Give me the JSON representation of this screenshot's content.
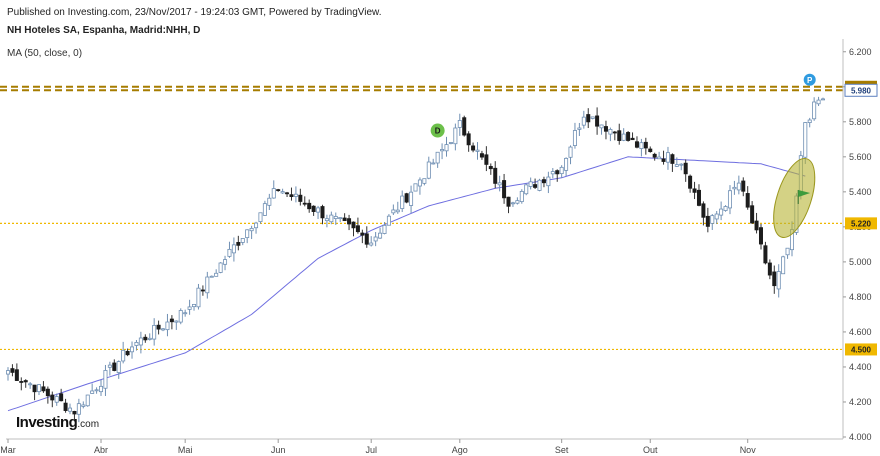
{
  "header": {
    "published": "Published on Investing.com, 23/Nov/2017 - 19:24:03 GMT, Powered by TradingView.",
    "symbol": "NH Hoteles SA, Espanha, Madrid:NHH, D",
    "indicator": "MA (50, close, 0)"
  },
  "brand": {
    "main": "Investing",
    "suffix": ".com"
  },
  "colors": {
    "up_fill": "#ffffff",
    "up_stroke": "#6f8fb3",
    "down_fill": "#1c1c1c",
    "ma_line": "#6e6ee0",
    "hline_dash": "#a67c00",
    "hline_dot": "#f0b800",
    "highlight": "#b8b434",
    "flag": "#3d9b3d",
    "badge_blue": "#2f9be0",
    "badge_green": "#6cc04a"
  },
  "chart_data": {
    "type": "candlestick",
    "title": "NH Hoteles SA, Espanha, Madrid:NHH, D",
    "ylim": [
      4.0,
      6.25
    ],
    "y_ticks": [
      4.0,
      4.2,
      4.4,
      4.6,
      4.8,
      5.0,
      5.2,
      5.4,
      5.6,
      5.8,
      6.0,
      6.2
    ],
    "y_tick_labels": [
      "4.000",
      "4.200",
      "4.400",
      "4.600",
      "4.800",
      "5.000",
      "5.200",
      "5.400",
      "5.600",
      "5.800",
      "6.000",
      "6.200"
    ],
    "x_labels": [
      {
        "label": "Mar",
        "bar": 0
      },
      {
        "label": "Abr",
        "bar": 21
      },
      {
        "label": "Mai",
        "bar": 40
      },
      {
        "label": "Jun",
        "bar": 61
      },
      {
        "label": "Jul",
        "bar": 82
      },
      {
        "label": "Ago",
        "bar": 102
      },
      {
        "label": "Set",
        "bar": 125
      },
      {
        "label": "Out",
        "bar": 145
      },
      {
        "label": "Nov",
        "bar": 167
      }
    ],
    "price_levels": [
      {
        "value": 6.0,
        "label": "6.000",
        "style": "dashed"
      },
      {
        "value": 5.98,
        "label": "5.980",
        "style": "dashed"
      },
      {
        "value": 5.22,
        "label": "5.220",
        "style": "dotted"
      },
      {
        "value": 4.5,
        "label": "4.500",
        "style": "dotted"
      }
    ],
    "key_closes": [
      {
        "bar": 0,
        "close": 4.38
      },
      {
        "bar": 15,
        "close": 4.15
      },
      {
        "bar": 28,
        "close": 4.52
      },
      {
        "bar": 40,
        "close": 4.72
      },
      {
        "bar": 61,
        "close": 5.42
      },
      {
        "bar": 82,
        "close": 5.12
      },
      {
        "bar": 97,
        "close": 5.6
      },
      {
        "bar": 102,
        "close": 5.78
      },
      {
        "bar": 113,
        "close": 5.35
      },
      {
        "bar": 125,
        "close": 5.55
      },
      {
        "bar": 130,
        "close": 5.85
      },
      {
        "bar": 145,
        "close": 5.62
      },
      {
        "bar": 152,
        "close": 5.58
      },
      {
        "bar": 158,
        "close": 5.2
      },
      {
        "bar": 165,
        "close": 5.45
      },
      {
        "bar": 173,
        "close": 4.85
      },
      {
        "bar": 177,
        "close": 5.15
      },
      {
        "bar": 180,
        "close": 5.8
      },
      {
        "bar": 183,
        "close": 5.92
      }
    ],
    "ma_points": [
      {
        "bar": 0,
        "value": 4.15
      },
      {
        "bar": 20,
        "value": 4.32
      },
      {
        "bar": 40,
        "value": 4.48
      },
      {
        "bar": 55,
        "value": 4.7
      },
      {
        "bar": 70,
        "value": 5.02
      },
      {
        "bar": 82,
        "value": 5.18
      },
      {
        "bar": 95,
        "value": 5.32
      },
      {
        "bar": 110,
        "value": 5.42
      },
      {
        "bar": 125,
        "value": 5.48
      },
      {
        "bar": 140,
        "value": 5.6
      },
      {
        "bar": 155,
        "value": 5.58
      },
      {
        "bar": 170,
        "value": 5.56
      },
      {
        "bar": 180,
        "value": 5.49
      }
    ],
    "event_badges": [
      {
        "letter": "D",
        "bar": 97,
        "value": 5.75
      },
      {
        "letter": "P",
        "bar": 181,
        "value": 6.04
      }
    ],
    "highlight": {
      "bar_start": 174,
      "bar_end": 181,
      "y_low": 5.13,
      "y_high": 5.6
    },
    "grid": false
  }
}
